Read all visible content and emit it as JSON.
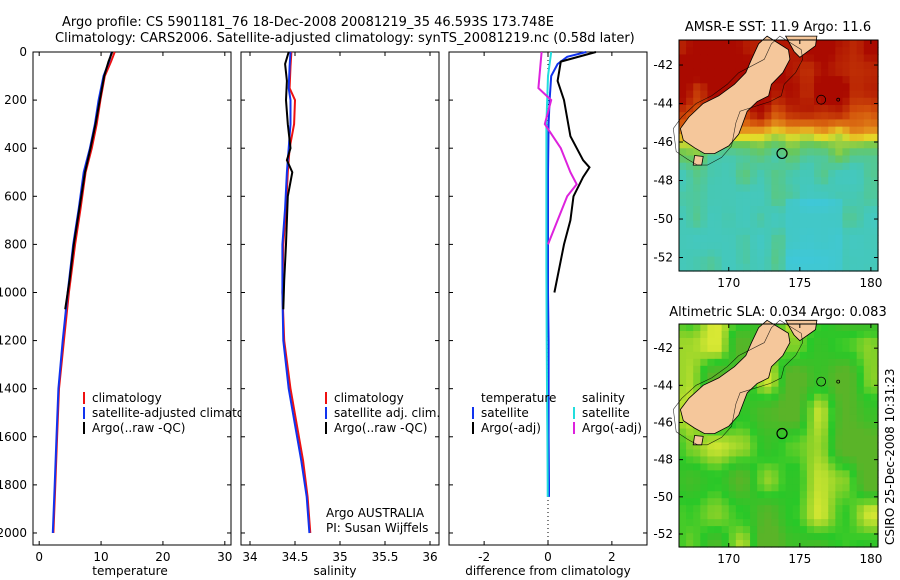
{
  "header": {
    "line1": "Argo profile: CS 5901181_76 18-Dec-2008 20081219_35 46.593S 173.748E",
    "line2": "Climatology: CARS2006. Satellite-adjusted climatology: synTS_20081219.nc (0.58d later)"
  },
  "credit": "CSIRO 25-Dec-2008 10:31:23",
  "colors": {
    "climatology": "#ee1111",
    "satellite": "#1133ee",
    "argo": "#000000",
    "salinity_satellite": "#22dddd",
    "salinity_argo": "#dd22dd",
    "land": "#f5c79b"
  },
  "chart_data": [
    {
      "type": "line",
      "xlabel": "temperature",
      "ylabel": "",
      "xlim": [
        -1,
        31
      ],
      "ylim": [
        2050,
        0
      ],
      "xticks": [
        "0",
        "10",
        "20",
        "30"
      ],
      "yticks": [
        "0",
        "200",
        "400",
        "600",
        "800",
        "1000",
        "1200",
        "1400",
        "1600",
        "1800",
        "2000"
      ],
      "legend": [
        "climatology",
        "satellite-adjusted climatolog",
        "Argo(..raw -QC)"
      ],
      "series": [
        {
          "name": "climatology",
          "color_key": "climatology",
          "x": [
            12.2,
            11.6,
            10.6,
            9.9,
            9.3,
            8.5,
            7.5,
            6.7,
            5.8,
            4.8,
            4.0,
            3.2,
            2.9,
            2.6,
            2.3
          ],
          "y": [
            0,
            40,
            100,
            200,
            300,
            400,
            500,
            650,
            800,
            1000,
            1200,
            1400,
            1600,
            1800,
            2000
          ]
        },
        {
          "name": "satellite-adjusted climatolog",
          "color_key": "satellite",
          "x": [
            11.7,
            11.3,
            10.4,
            9.6,
            9.0,
            8.2,
            7.2,
            6.4,
            5.5,
            4.6,
            3.8,
            3.1,
            2.8,
            2.5,
            2.2
          ],
          "y": [
            0,
            40,
            100,
            200,
            300,
            400,
            500,
            650,
            800,
            1000,
            1200,
            1400,
            1600,
            1800,
            2000
          ]
        },
        {
          "name": "Argo(..raw -QC)",
          "color_key": "argo",
          "x": [
            11.8,
            11.2,
            10.5,
            9.8,
            9.1,
            8.3,
            7.4,
            6.5,
            5.6,
            4.9,
            4.2
          ],
          "y": [
            0,
            40,
            100,
            200,
            300,
            400,
            500,
            650,
            800,
            950,
            1070
          ]
        }
      ]
    },
    {
      "type": "line",
      "xlabel": "salinity",
      "ylabel": "",
      "xlim": [
        33.9,
        36.1
      ],
      "ylim": [
        2050,
        0
      ],
      "xticks": [
        "34",
        "34.5",
        "35",
        "35.5",
        "36"
      ],
      "legend": [
        "climatology",
        "satellite adj. clim.",
        "Argo(..raw -QC)"
      ],
      "annotation": [
        "Argo AUSTRALIA",
        "PI: Susan Wijffels"
      ],
      "series": [
        {
          "name": "climatology",
          "color_key": "climatology",
          "x": [
            34.46,
            34.45,
            34.44,
            34.5,
            34.49,
            34.44,
            34.42,
            34.4,
            34.37,
            34.36,
            34.38,
            34.45,
            34.52,
            34.59,
            34.64,
            34.67
          ],
          "y": [
            0,
            60,
            150,
            200,
            300,
            400,
            500,
            650,
            800,
            1000,
            1200,
            1400,
            1550,
            1700,
            1850,
            2000
          ]
        },
        {
          "name": "satellite adj. clim.",
          "color_key": "satellite",
          "x": [
            34.45,
            34.44,
            34.43,
            34.45,
            34.45,
            34.43,
            34.41,
            34.39,
            34.36,
            34.36,
            34.37,
            34.43,
            34.5,
            34.57,
            34.63,
            34.66
          ],
          "y": [
            0,
            60,
            150,
            200,
            300,
            400,
            500,
            650,
            800,
            1000,
            1200,
            1400,
            1550,
            1700,
            1850,
            2000
          ]
        },
        {
          "name": "Argo(..raw -QC)",
          "color_key": "argo",
          "x": [
            34.43,
            34.39,
            34.41,
            34.4,
            34.42,
            34.45,
            34.41,
            34.47,
            34.42,
            34.4,
            34.38,
            34.37
          ],
          "y": [
            0,
            50,
            120,
            200,
            300,
            400,
            450,
            500,
            600,
            800,
            950,
            1070
          ]
        }
      ]
    },
    {
      "type": "line",
      "xlabel": "difference from climatology",
      "ylabel": "",
      "xlim": [
        -3.1,
        3.1
      ],
      "ylim": [
        2050,
        0
      ],
      "xticks": [
        "-2",
        "0",
        "2"
      ],
      "legend_temperature_heading": "temperature",
      "legend_salinity_heading": "salinity",
      "legend": [
        "satellite",
        "Argo(-adj)",
        "satellite",
        "Argo(-adj)"
      ],
      "series": [
        {
          "name": "satellite",
          "group": "temperature",
          "color_key": "satellite",
          "x": [
            1.2,
            0.6,
            0.3,
            0.1,
            0.05,
            0.02,
            0.0,
            0.0,
            0.0,
            0.02,
            0.02,
            0.02,
            0.03,
            0.03
          ],
          "y": [
            0,
            20,
            50,
            100,
            200,
            300,
            500,
            800,
            1000,
            1200,
            1400,
            1600,
            1800,
            1850
          ]
        },
        {
          "name": "Argo(-adj)",
          "group": "temperature",
          "color_key": "argo",
          "x": [
            1.5,
            0.4,
            0.3,
            0.5,
            0.7,
            1.1,
            1.3,
            1.1,
            0.8,
            0.7,
            0.5,
            0.2
          ],
          "y": [
            0,
            40,
            120,
            200,
            350,
            450,
            480,
            520,
            600,
            700,
            800,
            1000
          ]
        },
        {
          "name": "satellite",
          "group": "salinity",
          "color_key": "salinity_satellite",
          "x": [
            0.1,
            0.0,
            -0.05,
            -0.05,
            -0.05,
            -0.04,
            -0.03,
            -0.02,
            -0.01,
            -0.01
          ],
          "y": [
            0,
            100,
            300,
            600,
            900,
            1200,
            1400,
            1600,
            1800,
            1850
          ]
        },
        {
          "name": "Argo(-adj)",
          "group": "salinity",
          "color_key": "salinity_argo",
          "x": [
            -0.2,
            -0.3,
            0.1,
            -0.1,
            0.4,
            0.7,
            0.9,
            0.6,
            0.3,
            0.0
          ],
          "y": [
            0,
            150,
            200,
            300,
            400,
            500,
            550,
            600,
            700,
            800
          ]
        }
      ]
    },
    {
      "type": "heatmap",
      "title": "AMSR-E SST: 11.9 Argo: 11.6",
      "xlim": [
        166.5,
        180.5
      ],
      "ylim": [
        -52.7,
        -40.7
      ],
      "xticks": [
        "170",
        "175",
        "180"
      ],
      "yticks": [
        "-42",
        "-44",
        "-46",
        "-48",
        "-50",
        "-52"
      ],
      "marker": {
        "lon": 173.748,
        "lat": -46.593
      }
    },
    {
      "type": "heatmap",
      "title": "Altimetric SLA: 0.034 Argo: 0.083",
      "xlim": [
        166.5,
        180.5
      ],
      "ylim": [
        -52.7,
        -40.7
      ],
      "xticks": [
        "170",
        "175",
        "180"
      ],
      "yticks": [
        "-42",
        "-44",
        "-46",
        "-48",
        "-50",
        "-52"
      ],
      "marker": {
        "lon": 173.748,
        "lat": -46.593
      }
    }
  ]
}
